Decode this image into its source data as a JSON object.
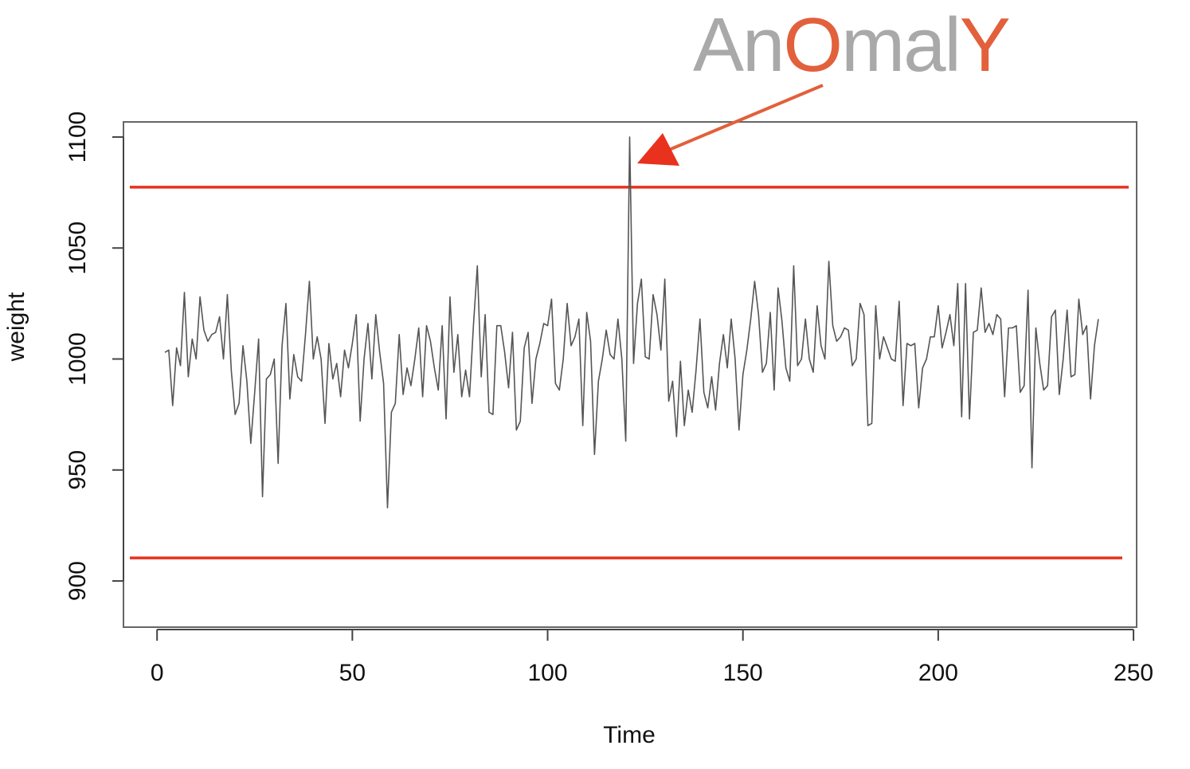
{
  "chart_data": {
    "type": "line",
    "x_label": "Time",
    "y_label": "weight",
    "annotation": {
      "text": [
        "An",
        "O",
        "mal",
        "Y"
      ],
      "colors": [
        "#a9a9a9",
        "#e2603b",
        "#a9a9a9",
        "#e2603b"
      ]
    },
    "color": "#555555",
    "xlim": [
      -8.6,
      250.8
    ],
    "ylim": [
      879.2,
      1106.8
    ],
    "xticks": [
      0,
      50,
      100,
      150,
      200,
      250
    ],
    "yticks": [
      900,
      950,
      1000,
      1050,
      1100
    ],
    "hlines": [
      {
        "value": 1077.4,
        "color": "#e8321e"
      },
      {
        "value": 910.4,
        "color": "#e8321e"
      }
    ],
    "x": [
      2,
      3,
      4,
      5,
      6,
      7,
      8,
      9,
      10,
      11,
      12,
      13,
      14,
      15,
      16,
      17,
      18,
      19,
      20,
      21,
      22,
      23,
      24,
      25,
      26,
      27,
      28,
      29,
      30,
      31,
      32,
      33,
      34,
      35,
      36,
      37,
      38,
      39,
      40,
      41,
      42,
      43,
      44,
      45,
      46,
      47,
      48,
      49,
      50,
      51,
      52,
      53,
      54,
      55,
      56,
      57,
      58,
      59,
      60,
      61,
      62,
      63,
      64,
      65,
      66,
      67,
      68,
      69,
      70,
      71,
      72,
      73,
      74,
      75,
      76,
      77,
      78,
      79,
      80,
      81,
      82,
      83,
      84,
      85,
      86,
      87,
      88,
      89,
      90,
      91,
      92,
      93,
      94,
      95,
      96,
      97,
      98,
      99,
      100,
      101,
      102,
      103,
      104,
      105,
      106,
      107,
      108,
      109,
      110,
      111,
      112,
      113,
      114,
      115,
      116,
      117,
      118,
      119,
      120,
      121,
      122,
      123,
      124,
      125,
      126,
      127,
      128,
      129,
      130,
      131,
      132,
      133,
      134,
      135,
      136,
      137,
      138,
      139,
      140,
      141,
      142,
      143,
      144,
      145,
      146,
      147,
      148,
      149,
      150,
      151,
      152,
      153,
      154,
      155,
      156,
      157,
      158,
      159,
      160,
      161,
      162,
      163,
      164,
      165,
      166,
      167,
      168,
      169,
      170,
      171,
      172,
      173,
      174,
      175,
      176,
      177,
      178,
      179,
      180,
      181,
      182,
      183,
      184,
      185,
      186,
      187,
      188,
      189,
      190,
      191,
      192,
      193,
      194,
      195,
      196,
      197,
      198,
      199,
      200,
      201,
      202,
      203,
      204,
      205,
      206,
      207,
      208,
      209,
      210,
      211,
      212,
      213,
      214,
      215,
      216,
      217,
      218,
      219,
      220,
      221,
      222,
      223,
      224,
      225,
      226,
      227,
      228,
      229,
      230,
      231,
      232,
      233,
      234,
      235,
      236,
      237,
      238,
      239,
      240,
      241
    ],
    "values": [
      1003,
      1004,
      979,
      1005,
      997,
      1030,
      992,
      1009,
      1000,
      1028,
      1013,
      1008,
      1011,
      1012,
      1019,
      1000,
      1029,
      995,
      975,
      980,
      1006,
      990,
      962,
      985,
      1009,
      938,
      991,
      993,
      1000,
      953,
      1006,
      1025,
      982,
      1002,
      992,
      990,
      1011,
      1035,
      1000,
      1010,
      1000,
      971,
      1007,
      991,
      998,
      983,
      1004,
      996,
      1007,
      1020,
      972,
      1000,
      1016,
      991,
      1020,
      1003,
      989,
      933,
      976,
      980,
      1011,
      984,
      996,
      988,
      1000,
      1014,
      983,
      1015,
      1008,
      996,
      986,
      1015,
      973,
      1028,
      994,
      1011,
      983,
      995,
      983,
      1015,
      1042,
      992,
      1020,
      976,
      975,
      1015,
      1015,
      1003,
      987,
      1012,
      968,
      972,
      1005,
      1012,
      980,
      1000,
      1007,
      1016,
      1015,
      1027,
      989,
      986,
      1000,
      1025,
      1006,
      1010,
      1018,
      970,
      1021,
      1008,
      957,
      990,
      1000,
      1013,
      1002,
      1000,
      1018,
      1000,
      963,
      1100,
      998,
      1025,
      1036,
      1001,
      1000,
      1029,
      1020,
      1004,
      1036,
      981,
      990,
      965,
      999,
      970,
      986,
      976,
      995,
      1018,
      985,
      978,
      992,
      977,
      998,
      1011,
      996,
      1018,
      1000,
      968,
      993,
      1004,
      1018,
      1035,
      1020,
      994,
      998,
      1021,
      986,
      1032,
      1017,
      996,
      990,
      1042,
      997,
      1000,
      1018,
      1000,
      994,
      1024,
      1006,
      1000,
      1044,
      1015,
      1008,
      1010,
      1014,
      1013,
      997,
      1000,
      1025,
      1020,
      970,
      971,
      1024,
      1000,
      1010,
      1005,
      1000,
      999,
      1026,
      979,
      1007,
      1006,
      1007,
      978,
      996,
      1000,
      1010,
      1010,
      1024,
      1005,
      1012,
      1020,
      1006,
      1034,
      974,
      1034,
      973,
      1012,
      1013,
      1032,
      1012,
      1016,
      1011,
      1020,
      1018,
      983,
      1014,
      1014,
      1015,
      985,
      988,
      1031,
      951,
      1014,
      998,
      986,
      988,
      1019,
      1022,
      984,
      1000,
      1022,
      992,
      993,
      1027,
      1011,
      1015,
      982,
      1006,
      1018
    ]
  }
}
